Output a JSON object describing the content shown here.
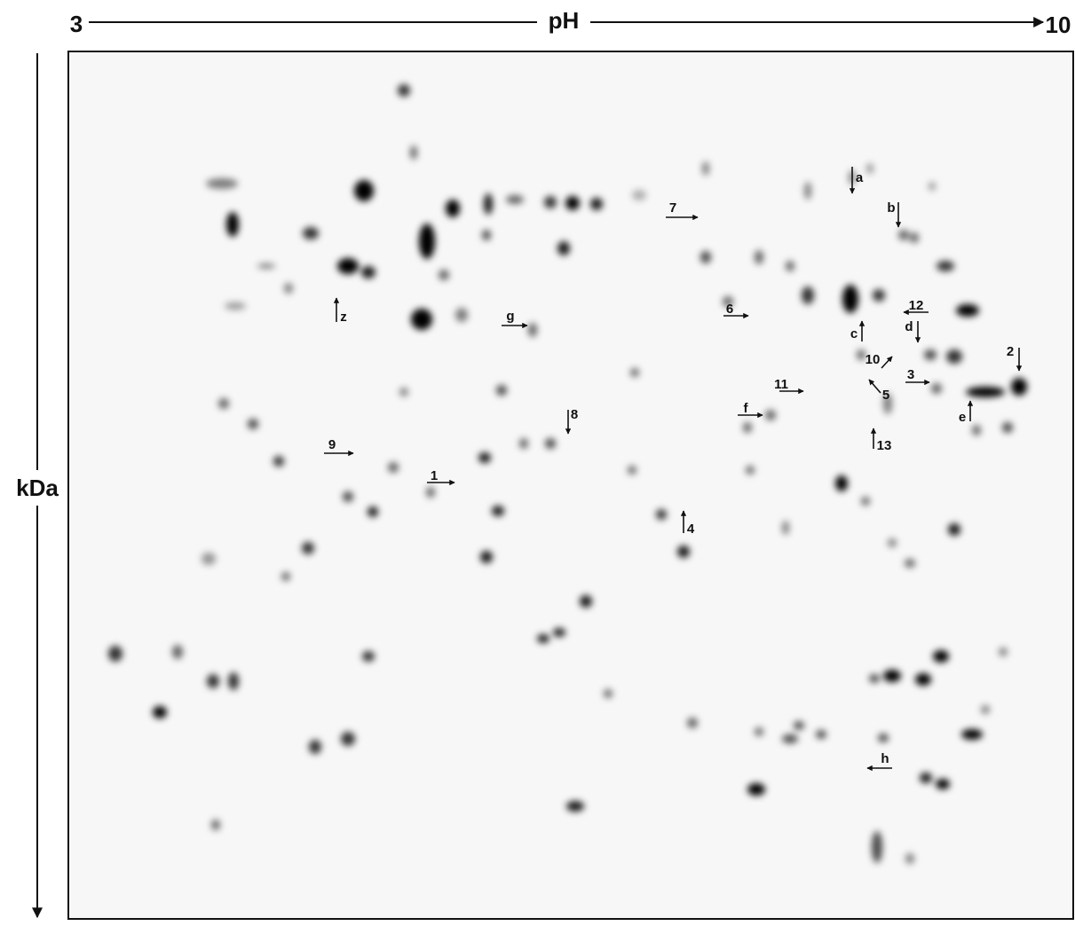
{
  "axes": {
    "x_start": "3",
    "x_label": "pH",
    "x_end": "10",
    "y_label": "kDa"
  },
  "annotations": [
    "a",
    "b",
    "7",
    "12",
    "d",
    "c",
    "6",
    "g",
    "z",
    "2",
    "10",
    "3",
    "5",
    "11",
    "e",
    "f",
    "8",
    "13",
    "9",
    "1",
    "4",
    "h"
  ]
}
